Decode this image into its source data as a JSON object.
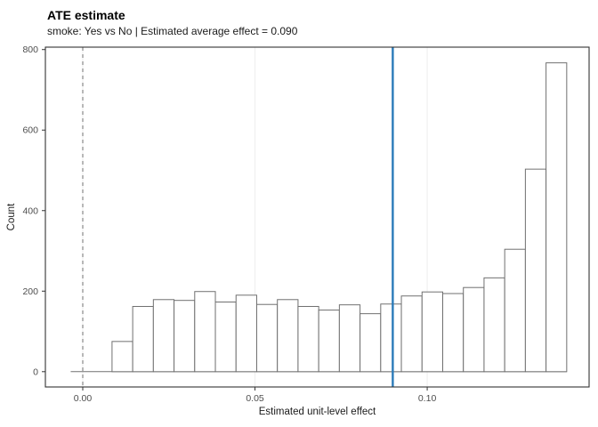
{
  "header": {
    "title": "ATE estimate",
    "subtitle": "smoke: Yes vs No | Estimated average effect = 0.090"
  },
  "chart_data": {
    "type": "bar",
    "subtype": "histogram",
    "title": "ATE estimate",
    "subtitle": "smoke: Yes vs No | Estimated average effect = 0.090",
    "xlabel": "Estimated unit-level effect",
    "ylabel": "Count",
    "bin_start": -0.0035,
    "bin_width": 0.006,
    "counts": [
      0,
      0,
      75,
      162,
      179,
      177,
      199,
      173,
      190,
      167,
      179,
      162,
      153,
      166,
      144,
      168,
      188,
      198,
      194,
      209,
      233,
      304,
      503,
      767
    ],
    "x_ticks": [
      {
        "v": 0.0,
        "label": "0.00"
      },
      {
        "v": 0.05,
        "label": "0.05"
      },
      {
        "v": 0.1,
        "label": "0.10"
      }
    ],
    "y_ticks": [
      {
        "v": 0,
        "label": "0"
      },
      {
        "v": 200,
        "label": "200"
      },
      {
        "v": 400,
        "label": "400"
      },
      {
        "v": 600,
        "label": "600"
      },
      {
        "v": 800,
        "label": "800"
      }
    ],
    "xlim": [
      -0.01085,
      0.147
    ],
    "ylim": [
      -38,
      806
    ],
    "grid": "vertical-majors-only",
    "legend": "none",
    "reference_lines": [
      {
        "x": 0.0,
        "style": "dashed",
        "color": "#999999",
        "width": 1.4,
        "name": "zero-line"
      },
      {
        "x": 0.09,
        "style": "solid",
        "color": "#2a7ab9",
        "width": 2.4,
        "name": "average-effect-line"
      }
    ],
    "colors": {
      "bar_fill": "#ffffff",
      "bar_stroke": "#707070",
      "gridline": "#ededed",
      "panel_border": "#333333",
      "axis_text": "#4d4d4d",
      "axis_title": "#1a1a1a"
    }
  }
}
